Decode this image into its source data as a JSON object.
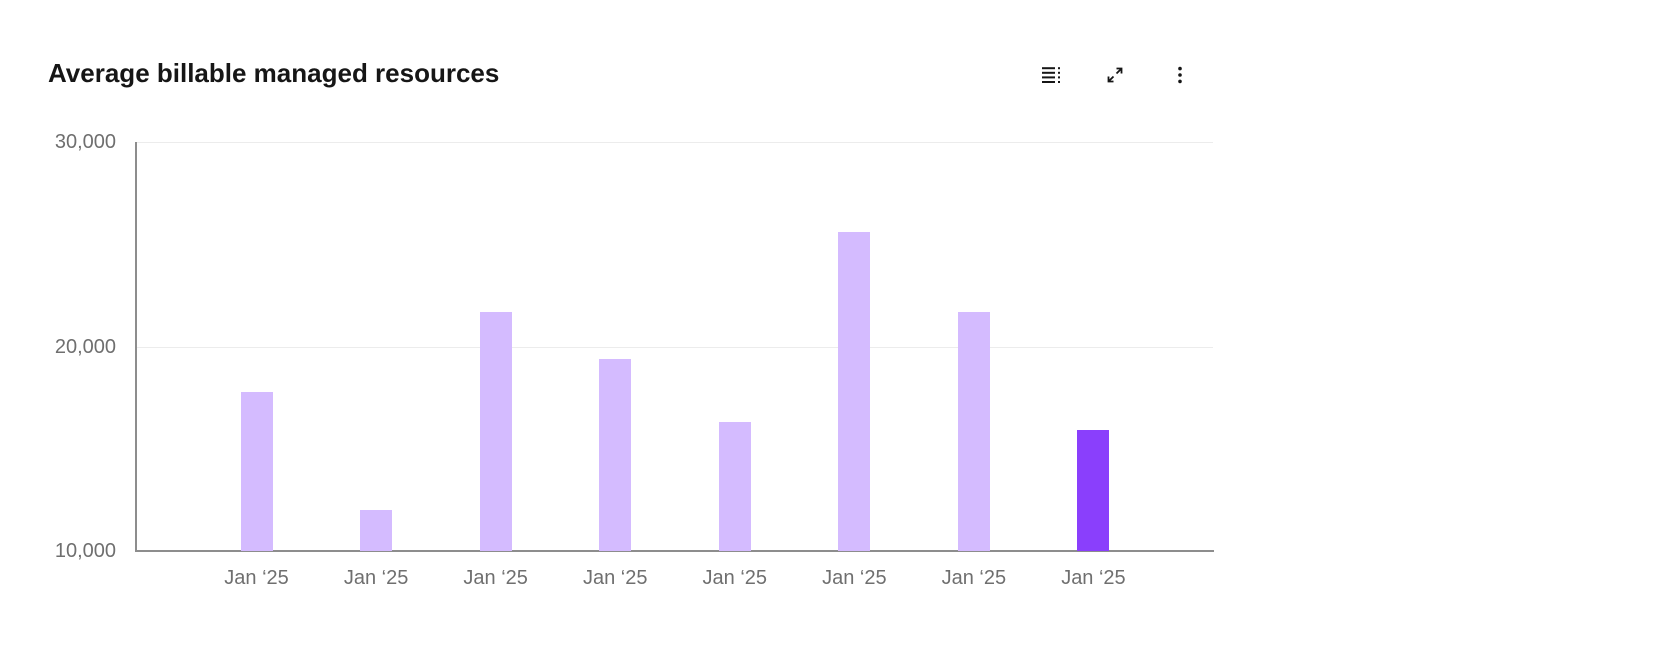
{
  "header": {
    "title": "Average billable managed resources",
    "toolbar_icons": [
      "data-table-icon",
      "maximize-icon",
      "overflow-menu-icon"
    ]
  },
  "chart_data": {
    "type": "bar",
    "title": "Average billable managed resources",
    "categories": [
      "Jan ‘25",
      "Jan ‘25",
      "Jan ‘25",
      "Jan ‘25",
      "Jan ‘25",
      "Jan ‘25",
      "Jan ‘25",
      "Jan ‘25"
    ],
    "values": [
      17800,
      12000,
      21700,
      19400,
      16300,
      25600,
      21700,
      15900
    ],
    "highlighted_index": 7,
    "xlabel": "",
    "ylabel": "",
    "ylim": [
      10000,
      30000
    ],
    "ytick_labels": [
      "10,000",
      "20,000",
      "30,000"
    ],
    "grid": "horizontal",
    "legend_position": "none",
    "colors": {
      "bar": "#d4bbff",
      "bar_highlight": "#8a3ffc",
      "axis_line": "#8d8d8d",
      "gridline": "#ececec",
      "tick_label": "#6f6f6f",
      "title_text": "#161616"
    }
  }
}
